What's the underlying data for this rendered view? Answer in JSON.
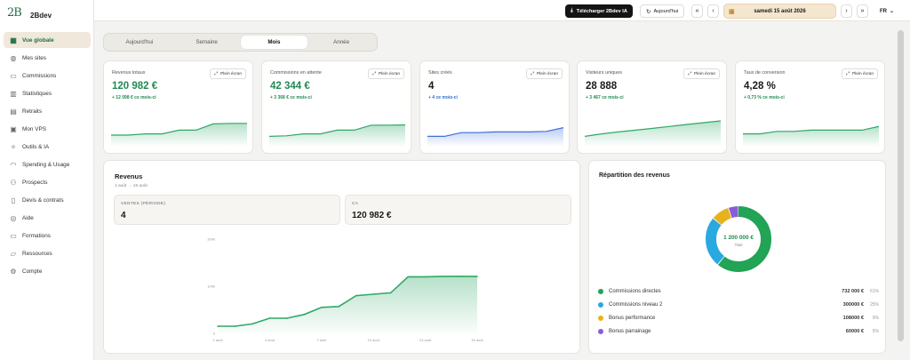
{
  "brand": {
    "name": "2Bdev",
    "mark": "2B"
  },
  "sidebar": {
    "items": [
      {
        "label": "Vue globale",
        "icon": "grid-icon",
        "glyph": "▦",
        "active": true
      },
      {
        "label": "Mes sites",
        "icon": "globe-icon",
        "glyph": "◍"
      },
      {
        "label": "Commissions",
        "icon": "wallet-icon",
        "glyph": "▭"
      },
      {
        "label": "Statistiques",
        "icon": "chart-icon",
        "glyph": "▥"
      },
      {
        "label": "Retraits",
        "icon": "card-icon",
        "glyph": "▤"
      },
      {
        "label": "Mon VPS",
        "icon": "server-icon",
        "glyph": "▣"
      },
      {
        "label": "Outils & IA",
        "icon": "sparkle-icon",
        "glyph": "✧"
      },
      {
        "label": "Spending & Usage",
        "icon": "gauge-icon",
        "glyph": "◠"
      },
      {
        "label": "Prospects",
        "icon": "users-icon",
        "glyph": "⚇"
      },
      {
        "label": "Devis & contrats",
        "icon": "document-icon",
        "glyph": "▯"
      },
      {
        "label": "Aide",
        "icon": "help-icon",
        "glyph": "◎"
      },
      {
        "label": "Formations",
        "icon": "book-icon",
        "glyph": "▭"
      },
      {
        "label": "Ressources",
        "icon": "folder-icon",
        "glyph": "▱"
      },
      {
        "label": "Compte",
        "icon": "gear-icon",
        "glyph": "⚙"
      }
    ]
  },
  "topbar": {
    "download_label": "Télécharger 2Bdev IA",
    "today_label": "Aujourd'hui",
    "date": "samedi 15 août 2026",
    "lang": "FR"
  },
  "tabs": [
    {
      "label": "Aujourd'hui"
    },
    {
      "label": "Semaine"
    },
    {
      "label": "Mois",
      "active": true
    },
    {
      "label": "Année"
    }
  ],
  "kpis": [
    {
      "title": "Revenus totaux",
      "value": "120 982 €",
      "delta": "+ 12 098 € ce mois-ci",
      "full": "Plein écran",
      "value_color": "#1f8a52",
      "delta_color": "#1f8a52",
      "line_color": "#2fa866",
      "fill_color": "#2fa866",
      "trend": [
        0.25,
        0.25,
        0.3,
        0.3,
        0.45,
        0.45,
        0.7,
        0.72,
        0.72
      ]
    },
    {
      "title": "Commissions en attente",
      "value": "42 344 €",
      "delta": "+ 3 368 € ce mois-ci",
      "full": "Plein écran",
      "value_color": "#1f8a52",
      "delta_color": "#1f8a52",
      "line_color": "#2fa866",
      "fill_color": "#2fa866",
      "trend": [
        0.2,
        0.22,
        0.3,
        0.3,
        0.45,
        0.45,
        0.65,
        0.65,
        0.66
      ]
    },
    {
      "title": "Sites créés",
      "value": "4",
      "delta": "+ 4 ce mois-ci",
      "full": "Plein écran",
      "value_color": "#1a1a1a",
      "delta_color": "#2a6fd0",
      "line_color": "#3f6fd8",
      "fill_color": "#3f6fd8",
      "trend": [
        0.2,
        0.2,
        0.35,
        0.35,
        0.38,
        0.38,
        0.38,
        0.4,
        0.55
      ]
    },
    {
      "title": "Visiteurs uniques",
      "value": "28 888",
      "delta": "+ 3 467 ce mois-ci",
      "full": "Plein écran",
      "value_color": "#1a1a1a",
      "delta_color": "#1f8a52",
      "line_color": "#2fa866",
      "fill_color": "#2fa866",
      "trend": [
        0.2,
        0.3,
        0.38,
        0.45,
        0.52,
        0.6,
        0.68,
        0.75,
        0.82
      ]
    },
    {
      "title": "Taux de conversion",
      "value": "4,28 %",
      "delta": "+ 0,73 % ce mois-ci",
      "full": "Plein écran",
      "value_color": "#1a1a1a",
      "delta_color": "#1f8a52",
      "line_color": "#2fa866",
      "fill_color": "#2fa866",
      "trend": [
        0.3,
        0.3,
        0.4,
        0.4,
        0.45,
        0.45,
        0.45,
        0.45,
        0.6
      ]
    }
  ],
  "revenus": {
    "title": "Revenus",
    "subtitle": "1 août → 16 août",
    "stats": [
      {
        "label": "VENTES (PÉRIODE)",
        "value": "4"
      },
      {
        "label": "CA",
        "value": "120 982 €"
      }
    ]
  },
  "chart_data": {
    "type": "area",
    "x": [
      "1 août",
      "2 août",
      "3 août",
      "4 août",
      "5 août",
      "6 août",
      "7 août",
      "8 août",
      "9 août",
      "10 août",
      "11 août",
      "12 août",
      "13 août",
      "14 août",
      "15 août",
      "16 août"
    ],
    "x_tick_labels": [
      "1 août",
      "4 août",
      "7 août",
      "10 août",
      "13 août",
      "16 août"
    ],
    "y_tick_labels": [
      "0",
      "100k",
      "200k"
    ],
    "values": [
      15000,
      15000,
      20000,
      32000,
      32000,
      40000,
      55000,
      57000,
      80000,
      83000,
      86000,
      120000,
      120000,
      121000,
      121000,
      121000
    ],
    "ylim": [
      0,
      200000
    ],
    "line_color": "#2fa866"
  },
  "repartition": {
    "title": "Répartition des revenus",
    "total_value": "1 200 000 €",
    "total_label": "Total",
    "items": [
      {
        "label": "Commissions directes",
        "value": "732 000 €",
        "pct": "61%",
        "share": 61,
        "color": "#22a355"
      },
      {
        "label": "Commissions niveau 2",
        "value": "300000 €",
        "pct": "25%",
        "share": 25,
        "color": "#2aa8e0"
      },
      {
        "label": "Bonus performance",
        "value": "108000 €",
        "pct": "9%",
        "share": 9,
        "color": "#e8b21e"
      },
      {
        "label": "Bonus parrainage",
        "value": "60000 €",
        "pct": "5%",
        "share": 5,
        "color": "#8a5cd8"
      }
    ]
  }
}
